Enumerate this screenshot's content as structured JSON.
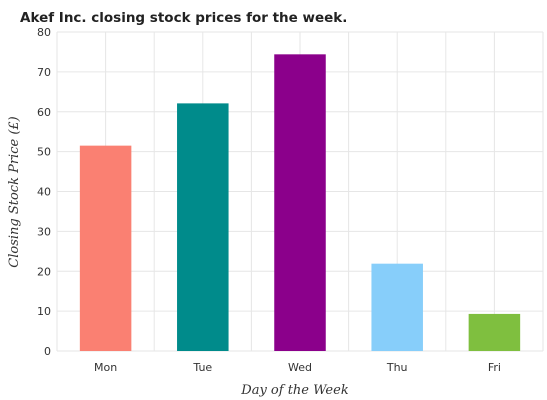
{
  "chart_data": {
    "type": "bar",
    "title": "Akef Inc. closing stock prices for the week.",
    "xlabel": "Day of the Week",
    "ylabel": "Closing Stock Price (£)",
    "categories": [
      "Mon",
      "Tue",
      "Wed",
      "Thu",
      "Fri"
    ],
    "values": [
      51.5,
      62.1,
      74.4,
      21.9,
      9.3
    ],
    "colors": [
      "#fa8072",
      "#008b8b",
      "#8b008b",
      "#87cefa",
      "#7fbf3f"
    ],
    "ylim": [
      0,
      80
    ],
    "yticks": [
      0,
      10,
      20,
      30,
      40,
      50,
      60,
      70,
      80
    ],
    "grid": true,
    "legend": "none"
  }
}
